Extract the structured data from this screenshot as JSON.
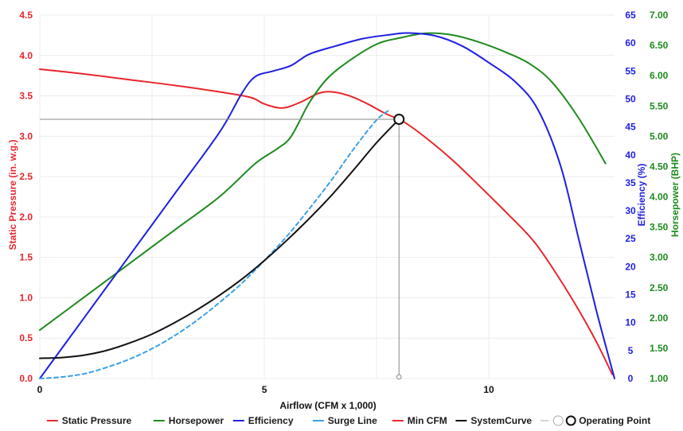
{
  "chart_data": {
    "type": "line",
    "title": "",
    "xlabel": "Airflow (CFM x 1,000)",
    "xlim": [
      0,
      12.8
    ],
    "x_ticks": [
      "0",
      "5",
      "10"
    ],
    "axes": {
      "pressure": {
        "label": "Static Pressure (in. w.g.)",
        "color": "#e8262c",
        "ylim": [
          0,
          4.5
        ],
        "ticks": [
          "0.0",
          "0.5",
          "1.0",
          "1.5",
          "2.0",
          "2.5",
          "3.0",
          "3.5",
          "4.0",
          "4.5"
        ]
      },
      "efficiency": {
        "label": "Efficiency (%)",
        "color": "#1f1fe0",
        "ylim": [
          0,
          65
        ],
        "ticks": [
          "0",
          "5",
          "10",
          "15",
          "20",
          "25",
          "30",
          "35",
          "40",
          "45",
          "50",
          "55",
          "60",
          "65"
        ]
      },
      "horsepower": {
        "label": "Horsepower (BHP)",
        "color": "#1e8a1e",
        "ylim": [
          1.0,
          7.0
        ],
        "ticks": [
          "1.00",
          "1.50",
          "2.00",
          "2.50",
          "3.00",
          "3.50",
          "4.00",
          "4.50",
          "5.00",
          "5.50",
          "6.00",
          "6.50",
          "7.00"
        ]
      }
    },
    "series": [
      {
        "name": "Static Pressure",
        "axis": "pressure",
        "color": "#e8262c",
        "dash": "",
        "points": [
          [
            0,
            3.83
          ],
          [
            1,
            3.77
          ],
          [
            2,
            3.7
          ],
          [
            3,
            3.63
          ],
          [
            4,
            3.55
          ],
          [
            4.7,
            3.48
          ],
          [
            5.0,
            3.4
          ],
          [
            5.4,
            3.35
          ],
          [
            5.8,
            3.42
          ],
          [
            6.2,
            3.53
          ],
          [
            6.5,
            3.55
          ],
          [
            6.9,
            3.5
          ],
          [
            7.3,
            3.4
          ],
          [
            7.7,
            3.28
          ],
          [
            8.1,
            3.18
          ],
          [
            8.6,
            2.98
          ],
          [
            9.2,
            2.7
          ],
          [
            9.8,
            2.38
          ],
          [
            10.4,
            2.05
          ],
          [
            11.0,
            1.7
          ],
          [
            11.5,
            1.3
          ],
          [
            12.0,
            0.85
          ],
          [
            12.4,
            0.45
          ],
          [
            12.75,
            0.05
          ]
        ]
      },
      {
        "name": "Horsepower",
        "axis": "horsepower",
        "color": "#1e8a1e",
        "dash": "",
        "points": [
          [
            0,
            1.8
          ],
          [
            1,
            2.35
          ],
          [
            2,
            2.9
          ],
          [
            3,
            3.45
          ],
          [
            4,
            4.0
          ],
          [
            4.8,
            4.55
          ],
          [
            5.3,
            4.8
          ],
          [
            5.6,
            5.0
          ],
          [
            6.0,
            5.55
          ],
          [
            6.4,
            5.95
          ],
          [
            6.9,
            6.25
          ],
          [
            7.5,
            6.52
          ],
          [
            8.0,
            6.62
          ],
          [
            8.6,
            6.7
          ],
          [
            9.2,
            6.67
          ],
          [
            9.8,
            6.55
          ],
          [
            10.4,
            6.38
          ],
          [
            10.9,
            6.2
          ],
          [
            11.4,
            5.9
          ],
          [
            12.0,
            5.3
          ],
          [
            12.6,
            4.55
          ]
        ]
      },
      {
        "name": "Efficiency",
        "axis": "efficiency",
        "color": "#1f1fe0",
        "dash": "",
        "points": [
          [
            0,
            0
          ],
          [
            1,
            11
          ],
          [
            2,
            22
          ],
          [
            3,
            33
          ],
          [
            4,
            44
          ],
          [
            4.5,
            51
          ],
          [
            4.8,
            54
          ],
          [
            5.2,
            55
          ],
          [
            5.6,
            56
          ],
          [
            6.0,
            58
          ],
          [
            6.6,
            59.5
          ],
          [
            7.2,
            60.8
          ],
          [
            7.8,
            61.5
          ],
          [
            8.2,
            61.8
          ],
          [
            8.8,
            61.3
          ],
          [
            9.4,
            59.5
          ],
          [
            10.0,
            56.5
          ],
          [
            10.6,
            53
          ],
          [
            11.1,
            48
          ],
          [
            11.6,
            38
          ],
          [
            12.0,
            25
          ],
          [
            12.4,
            12
          ],
          [
            12.8,
            0
          ]
        ]
      },
      {
        "name": "Surge Line",
        "axis": "pressure",
        "color": "#3aa0e6",
        "dash": "5,4",
        "points": [
          [
            0,
            0
          ],
          [
            0.5,
            0.02
          ],
          [
            1,
            0.06
          ],
          [
            1.5,
            0.14
          ],
          [
            2,
            0.24
          ],
          [
            2.5,
            0.37
          ],
          [
            3,
            0.53
          ],
          [
            3.5,
            0.72
          ],
          [
            4,
            0.94
          ],
          [
            4.5,
            1.18
          ],
          [
            5,
            1.46
          ],
          [
            5.5,
            1.76
          ],
          [
            6,
            2.1
          ],
          [
            6.5,
            2.46
          ],
          [
            7,
            2.85
          ],
          [
            7.5,
            3.2
          ],
          [
            7.8,
            3.33
          ]
        ]
      },
      {
        "name": "SystemCurve",
        "axis": "pressure",
        "color": "#111111",
        "dash": "",
        "points": [
          [
            0,
            0.25
          ],
          [
            0.5,
            0.26
          ],
          [
            1,
            0.29
          ],
          [
            1.5,
            0.35
          ],
          [
            2,
            0.44
          ],
          [
            2.5,
            0.55
          ],
          [
            3,
            0.69
          ],
          [
            3.5,
            0.85
          ],
          [
            4,
            1.03
          ],
          [
            4.5,
            1.23
          ],
          [
            5,
            1.46
          ],
          [
            5.5,
            1.71
          ],
          [
            6,
            1.98
          ],
          [
            6.5,
            2.27
          ],
          [
            7,
            2.59
          ],
          [
            7.5,
            2.92
          ],
          [
            8.0,
            3.21
          ]
        ]
      }
    ],
    "operating_point": {
      "x": 8.0,
      "pressure": 3.21
    },
    "reference_lines": {
      "color": "#888888"
    },
    "legend": {
      "position": "bottom",
      "items": [
        {
          "label": "Static Pressure",
          "color": "#e8262c",
          "type": "line"
        },
        {
          "label": "Horsepower",
          "color": "#1e8a1e",
          "type": "line"
        },
        {
          "label": "Efficiency",
          "color": "#1f1fe0",
          "type": "line"
        },
        {
          "label": "Surge Line",
          "color": "#3aa0e6",
          "type": "line"
        },
        {
          "label": "Min CFM",
          "color": "#e8262c",
          "type": "line"
        },
        {
          "label": "SystemCurve",
          "color": "#111111",
          "type": "line"
        },
        {
          "label": "",
          "color": "#aaaaaa",
          "type": "line-circle"
        },
        {
          "label": "Operating Point",
          "color": "#111111",
          "type": "circle"
        }
      ]
    },
    "grid": true
  }
}
